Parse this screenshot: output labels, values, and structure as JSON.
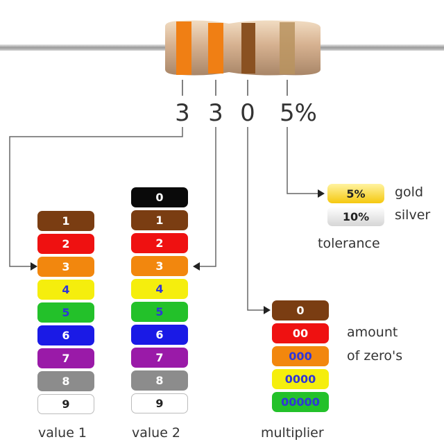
{
  "band_values": [
    "3",
    "3",
    "0",
    "5%"
  ],
  "value1": {
    "label": "value 1",
    "chips": [
      {
        "text": "1",
        "bg": "#7a3d12",
        "fg": "#ffffff"
      },
      {
        "text": "2",
        "bg": "#ef1111",
        "fg": "#ffffff"
      },
      {
        "text": "3",
        "bg": "#f2870e",
        "fg": "#ffffff"
      },
      {
        "text": "4",
        "bg": "#f5ee0d",
        "fg": "#2f36d8"
      },
      {
        "text": "5",
        "bg": "#23c12a",
        "fg": "#2f36d8"
      },
      {
        "text": "6",
        "bg": "#1a1ae6",
        "fg": "#ffffff"
      },
      {
        "text": "7",
        "bg": "#9a1aa8",
        "fg": "#ffffff"
      },
      {
        "text": "8",
        "bg": "#8c8c8c",
        "fg": "#ffffff"
      },
      {
        "text": "9",
        "bg": "#ffffff",
        "fg": "#222222"
      }
    ]
  },
  "value2": {
    "label": "value 2",
    "chips": [
      {
        "text": "0",
        "bg": "#0a0a0a",
        "fg": "#ffffff"
      },
      {
        "text": "1",
        "bg": "#7a3d12",
        "fg": "#ffffff"
      },
      {
        "text": "2",
        "bg": "#ef1111",
        "fg": "#ffffff"
      },
      {
        "text": "3",
        "bg": "#f2870e",
        "fg": "#ffffff"
      },
      {
        "text": "4",
        "bg": "#f5ee0d",
        "fg": "#2f36d8"
      },
      {
        "text": "5",
        "bg": "#23c12a",
        "fg": "#2f36d8"
      },
      {
        "text": "6",
        "bg": "#1a1ae6",
        "fg": "#ffffff"
      },
      {
        "text": "7",
        "bg": "#9a1aa8",
        "fg": "#ffffff"
      },
      {
        "text": "8",
        "bg": "#8c8c8c",
        "fg": "#ffffff"
      },
      {
        "text": "9",
        "bg": "#ffffff",
        "fg": "#222222"
      }
    ]
  },
  "multiplier": {
    "label": "multiplier",
    "note_line1": "amount",
    "note_line2": "of zero's",
    "chips": [
      {
        "text": "0",
        "bg": "#7a3d12",
        "fg": "#ffffff"
      },
      {
        "text": "00",
        "bg": "#ef1111",
        "fg": "#ffffff"
      },
      {
        "text": "000",
        "bg": "#f2870e",
        "fg": "#2f36d8"
      },
      {
        "text": "0000",
        "bg": "#f5ee0d",
        "fg": "#2f36d8"
      },
      {
        "text": "00000",
        "bg": "#23c12a",
        "fg": "#2f36d8"
      }
    ]
  },
  "tolerance": {
    "label": "tolerance",
    "gold": {
      "chip": "5%",
      "name": "gold",
      "bg": "#f5c80f"
    },
    "silver": {
      "chip": "10%",
      "name": "silver",
      "bg": "#d6d6d6"
    }
  }
}
